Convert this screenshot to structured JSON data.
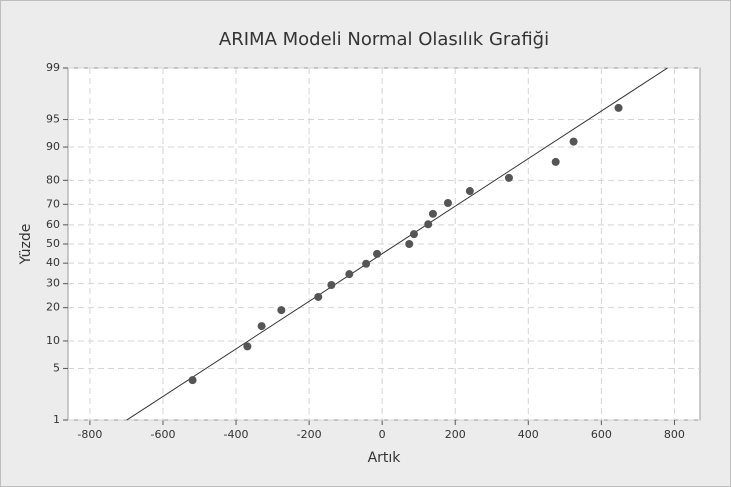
{
  "chart_data": {
    "type": "probability",
    "title": "ARIMA Modeli Normal Olasılık Grafiği",
    "x_label": "Artık",
    "y_label": "Yüzde",
    "yscale": "normal-probability",
    "x": [
      -519,
      -369,
      -330,
      -276,
      -175,
      -139,
      -90,
      -44,
      -14,
      74,
      87,
      126,
      139,
      180,
      240,
      347,
      475,
      524,
      647
    ],
    "values": [
      3.6,
      8.8,
      13.9,
      19.1,
      24.2,
      29.4,
      34.5,
      39.7,
      44.8,
      50,
      55.2,
      60.3,
      65.5,
      70.6,
      75.8,
      80.9,
      86.1,
      91.2,
      96.4
    ],
    "color": "#555555",
    "fit_line": {
      "x": [
        -699,
        781
      ],
      "values": [
        1,
        99
      ],
      "color": "#333333"
    },
    "xlim": [
      -860,
      870
    ],
    "ylim": [
      1,
      99
    ],
    "xticks": [
      -800,
      -600,
      -400,
      -200,
      0,
      200,
      400,
      600,
      800
    ],
    "yticks": [
      1,
      5,
      10,
      20,
      30,
      40,
      50,
      60,
      70,
      80,
      90,
      95,
      99
    ],
    "grid": true
  }
}
